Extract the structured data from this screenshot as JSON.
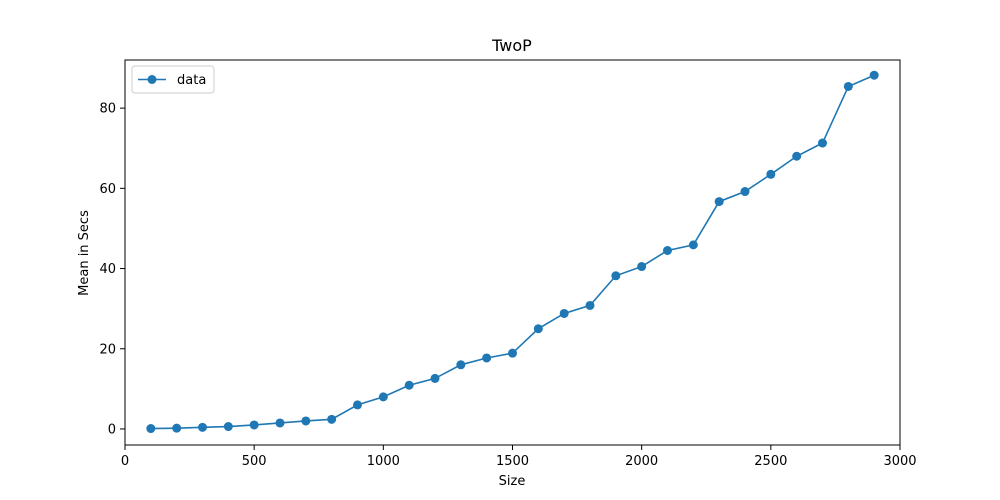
{
  "chart_data": {
    "type": "line",
    "title": "TwoP",
    "xlabel": "Size",
    "ylabel": "Mean in Secs",
    "xlim": [
      0,
      3000
    ],
    "ylim": [
      -4,
      92
    ],
    "xticks": [
      0,
      500,
      1000,
      1500,
      2000,
      2500,
      3000
    ],
    "yticks": [
      0,
      20,
      40,
      60,
      80
    ],
    "xtick_labels": [
      "0",
      "500",
      "1000",
      "1500",
      "2000",
      "2500",
      "3000"
    ],
    "ytick_labels": [
      "0",
      "20",
      "40",
      "60",
      "80"
    ],
    "grid": false,
    "legend_position": "top-left",
    "series": [
      {
        "name": "data",
        "color": "#1f77b4",
        "marker": "circle",
        "x": [
          100,
          200,
          300,
          400,
          500,
          600,
          700,
          800,
          900,
          1000,
          1100,
          1200,
          1300,
          1400,
          1500,
          1600,
          1700,
          1800,
          1900,
          2000,
          2100,
          2200,
          2300,
          2400,
          2500,
          2600,
          2700,
          2800,
          2900
        ],
        "y": [
          0.1,
          0.2,
          0.4,
          0.6,
          1.0,
          1.5,
          2.0,
          2.4,
          6.0,
          8.0,
          10.9,
          12.6,
          16.0,
          17.7,
          18.9,
          25.0,
          28.8,
          30.8,
          38.2,
          40.5,
          44.5,
          45.9,
          56.7,
          59.2,
          63.5,
          68.0,
          71.3,
          85.4,
          88.2
        ]
      }
    ]
  }
}
